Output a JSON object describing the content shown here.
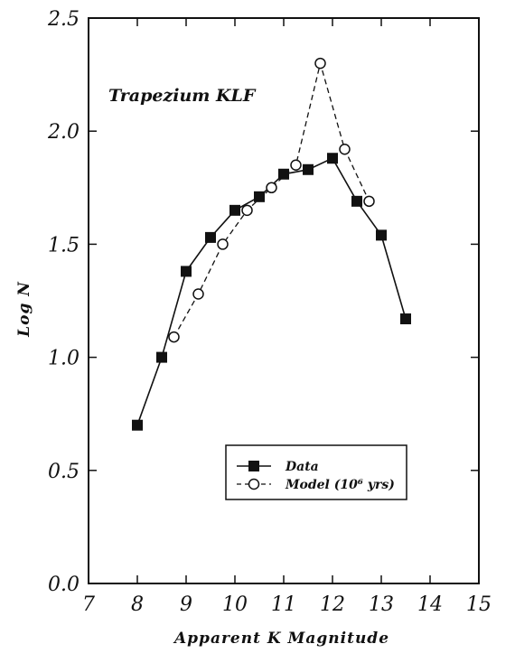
{
  "chart_data": {
    "type": "line",
    "title": "Trapezium KLF",
    "xlabel": "Apparent K Magnitude",
    "ylabel": "Log N",
    "xlim": [
      7,
      15
    ],
    "ylim": [
      0.0,
      2.5
    ],
    "xticks": [
      "7",
      "8",
      "9",
      "10",
      "11",
      "12",
      "13",
      "14",
      "15"
    ],
    "yticks": [
      "0.0",
      "0.5",
      "1.0",
      "1.5",
      "2.0",
      "2.5"
    ],
    "grid": false,
    "legend_position": "lower-right",
    "series": [
      {
        "name": "Data",
        "marker": "filled-square",
        "line": "solid",
        "x": [
          8.0,
          8.5,
          9.0,
          9.5,
          10.0,
          10.5,
          11.0,
          11.5,
          12.0,
          12.5,
          13.0,
          13.5
        ],
        "y": [
          0.7,
          1.0,
          1.38,
          1.53,
          1.65,
          1.71,
          1.81,
          1.83,
          1.88,
          1.69,
          1.54,
          1.17
        ]
      },
      {
        "name": "Model (10⁶ yrs)",
        "marker": "open-circle",
        "line": "dashed",
        "x": [
          8.75,
          9.25,
          9.75,
          10.25,
          10.75,
          11.25,
          11.75,
          12.25,
          12.75
        ],
        "y": [
          1.09,
          1.28,
          1.5,
          1.65,
          1.75,
          1.85,
          2.3,
          1.92,
          1.69
        ]
      }
    ]
  }
}
